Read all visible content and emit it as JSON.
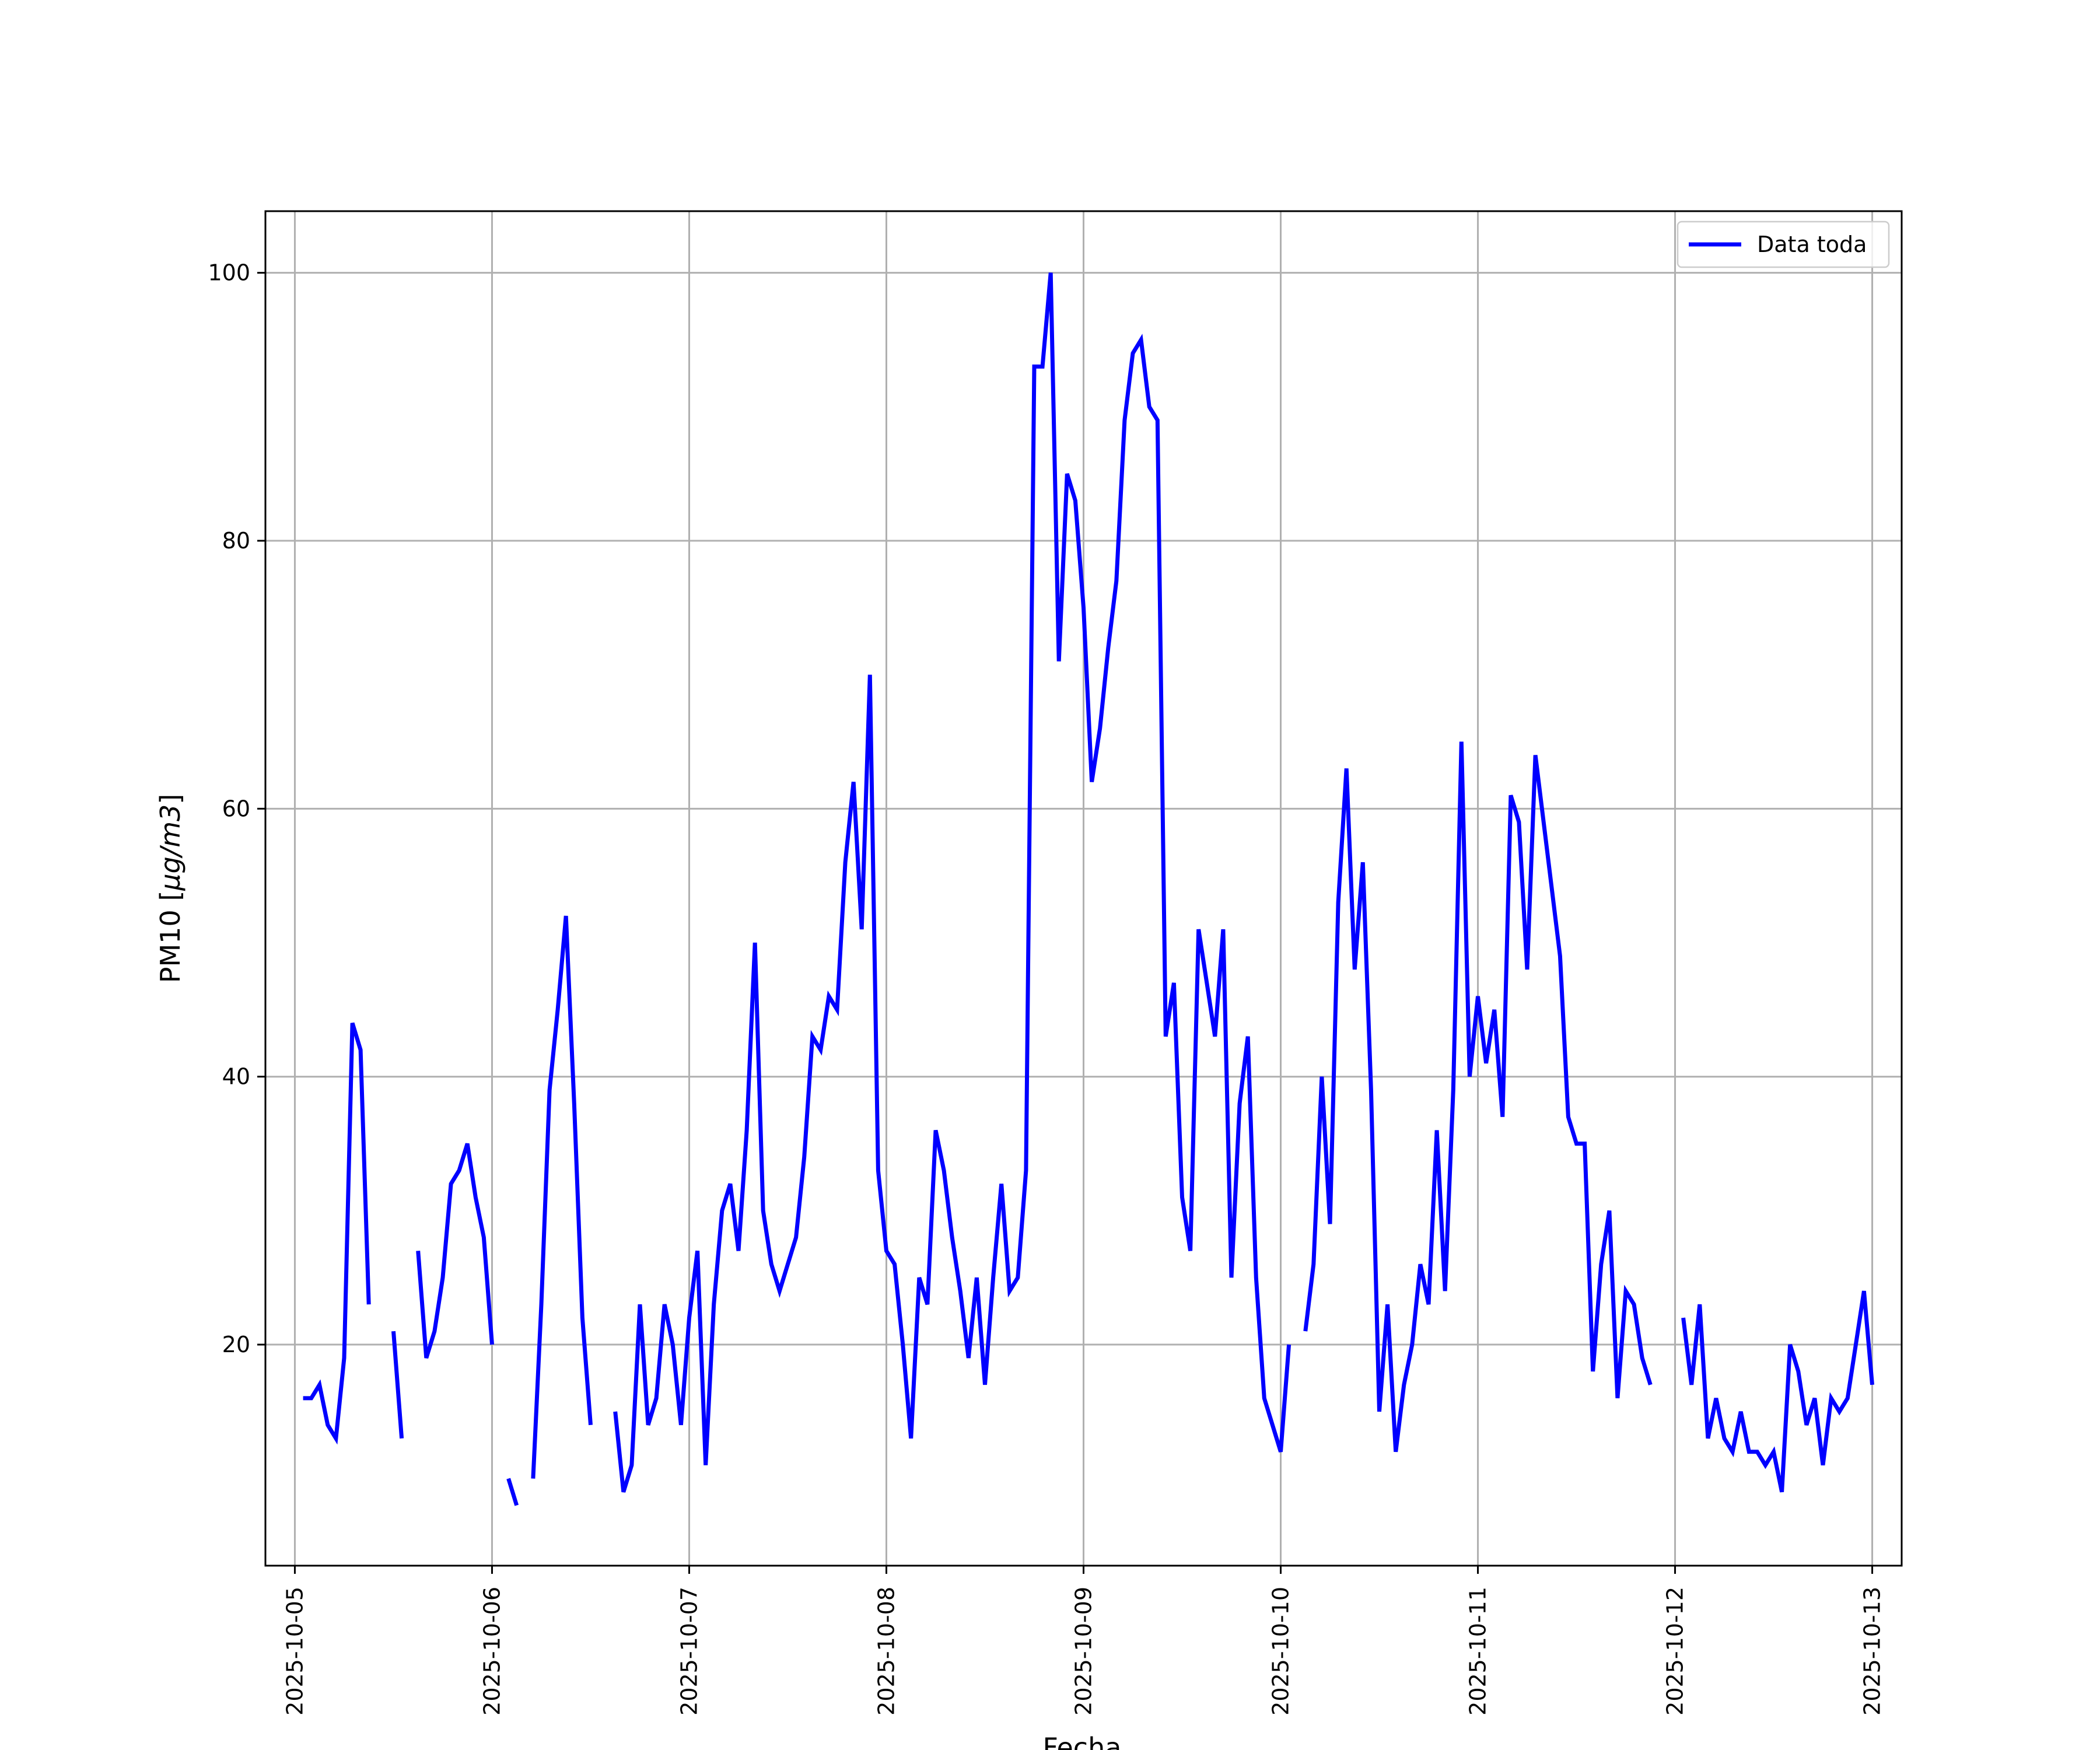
{
  "chart_data": {
    "type": "line",
    "title": "",
    "xlabel": "Fecha",
    "ylabel_prefix": "PM10 [",
    "ylabel_unit": "μg/m3",
    "ylabel_suffix": "]",
    "legend": {
      "label": "Data toda",
      "placement": "top-right"
    },
    "grid": true,
    "xlim": [
      "2025-10-04T20:25",
      "2025-10-13T03:35"
    ],
    "ylim": [
      3.5,
      104.6
    ],
    "x_ticks": [
      "2025-10-05",
      "2025-10-06",
      "2025-10-07",
      "2025-10-08",
      "2025-10-09",
      "2025-10-10",
      "2025-10-11",
      "2025-10-12",
      "2025-10-13"
    ],
    "y_ticks": [
      20,
      40,
      60,
      80,
      100
    ],
    "series": [
      {
        "name": "Data toda",
        "color": "#0000ff",
        "points": [
          [
            "2025-10-05T01:00",
            16
          ],
          [
            "2025-10-05T02:00",
            16
          ],
          [
            "2025-10-05T03:00",
            17
          ],
          [
            "2025-10-05T04:00",
            14
          ],
          [
            "2025-10-05T05:00",
            13
          ],
          [
            "2025-10-05T06:00",
            19
          ],
          [
            "2025-10-05T07:00",
            44
          ],
          [
            "2025-10-05T08:00",
            42
          ],
          [
            "2025-10-05T09:00",
            23
          ],
          [
            "2025-10-05T10:00",
            null
          ],
          [
            "2025-10-05T11:00",
            null
          ],
          [
            "2025-10-05T12:00",
            21
          ],
          [
            "2025-10-05T13:00",
            13
          ],
          [
            "2025-10-05T14:00",
            null
          ],
          [
            "2025-10-05T15:00",
            27
          ],
          [
            "2025-10-05T16:00",
            19
          ],
          [
            "2025-10-05T17:00",
            21
          ],
          [
            "2025-10-05T18:00",
            25
          ],
          [
            "2025-10-05T19:00",
            32
          ],
          [
            "2025-10-05T20:00",
            33
          ],
          [
            "2025-10-05T21:00",
            35
          ],
          [
            "2025-10-05T22:00",
            31
          ],
          [
            "2025-10-05T23:00",
            28
          ],
          [
            "2025-10-06T00:00",
            20
          ],
          [
            "2025-10-06T01:00",
            null
          ],
          [
            "2025-10-06T02:00",
            10
          ],
          [
            "2025-10-06T03:00",
            8
          ],
          [
            "2025-10-06T04:00",
            null
          ],
          [
            "2025-10-06T05:00",
            10
          ],
          [
            "2025-10-06T06:00",
            23
          ],
          [
            "2025-10-06T07:00",
            39
          ],
          [
            "2025-10-06T08:00",
            45
          ],
          [
            "2025-10-06T09:00",
            52
          ],
          [
            "2025-10-06T10:00",
            38
          ],
          [
            "2025-10-06T11:00",
            22
          ],
          [
            "2025-10-06T12:00",
            14
          ],
          [
            "2025-10-06T13:00",
            null
          ],
          [
            "2025-10-06T14:00",
            null
          ],
          [
            "2025-10-06T15:00",
            15
          ],
          [
            "2025-10-06T16:00",
            9
          ],
          [
            "2025-10-06T17:00",
            11
          ],
          [
            "2025-10-06T18:00",
            23
          ],
          [
            "2025-10-06T19:00",
            14
          ],
          [
            "2025-10-06T20:00",
            16
          ],
          [
            "2025-10-06T21:00",
            23
          ],
          [
            "2025-10-06T22:00",
            20
          ],
          [
            "2025-10-06T23:00",
            14
          ],
          [
            "2025-10-07T00:00",
            22
          ],
          [
            "2025-10-07T01:00",
            27
          ],
          [
            "2025-10-07T02:00",
            11
          ],
          [
            "2025-10-07T03:00",
            23
          ],
          [
            "2025-10-07T04:00",
            30
          ],
          [
            "2025-10-07T05:00",
            32
          ],
          [
            "2025-10-07T06:00",
            27
          ],
          [
            "2025-10-07T07:00",
            36
          ],
          [
            "2025-10-07T08:00",
            50
          ],
          [
            "2025-10-07T09:00",
            30
          ],
          [
            "2025-10-07T10:00",
            26
          ],
          [
            "2025-10-07T11:00",
            24
          ],
          [
            "2025-10-07T12:00",
            26
          ],
          [
            "2025-10-07T13:00",
            28
          ],
          [
            "2025-10-07T14:00",
            34
          ],
          [
            "2025-10-07T15:00",
            43
          ],
          [
            "2025-10-07T16:00",
            42
          ],
          [
            "2025-10-07T17:00",
            46
          ],
          [
            "2025-10-07T18:00",
            45
          ],
          [
            "2025-10-07T19:00",
            56
          ],
          [
            "2025-10-07T20:00",
            62
          ],
          [
            "2025-10-07T21:00",
            51
          ],
          [
            "2025-10-07T22:00",
            70
          ],
          [
            "2025-10-07T23:00",
            33
          ],
          [
            "2025-10-08T00:00",
            27
          ],
          [
            "2025-10-08T01:00",
            26
          ],
          [
            "2025-10-08T02:00",
            20
          ],
          [
            "2025-10-08T03:00",
            13
          ],
          [
            "2025-10-08T04:00",
            25
          ],
          [
            "2025-10-08T05:00",
            23
          ],
          [
            "2025-10-08T06:00",
            36
          ],
          [
            "2025-10-08T07:00",
            33
          ],
          [
            "2025-10-08T08:00",
            28
          ],
          [
            "2025-10-08T09:00",
            24
          ],
          [
            "2025-10-08T10:00",
            19
          ],
          [
            "2025-10-08T11:00",
            25
          ],
          [
            "2025-10-08T12:00",
            17
          ],
          [
            "2025-10-08T13:00",
            25
          ],
          [
            "2025-10-08T14:00",
            32
          ],
          [
            "2025-10-08T15:00",
            24
          ],
          [
            "2025-10-08T16:00",
            25
          ],
          [
            "2025-10-08T17:00",
            33
          ],
          [
            "2025-10-08T18:00",
            93
          ],
          [
            "2025-10-08T19:00",
            93
          ],
          [
            "2025-10-08T20:00",
            100
          ],
          [
            "2025-10-08T21:00",
            71
          ],
          [
            "2025-10-08T22:00",
            85
          ],
          [
            "2025-10-08T23:00",
            83
          ],
          [
            "2025-10-09T00:00",
            75
          ],
          [
            "2025-10-09T01:00",
            62
          ],
          [
            "2025-10-09T02:00",
            66
          ],
          [
            "2025-10-09T03:00",
            72
          ],
          [
            "2025-10-09T04:00",
            77
          ],
          [
            "2025-10-09T05:00",
            89
          ],
          [
            "2025-10-09T06:00",
            94
          ],
          [
            "2025-10-09T07:00",
            95
          ],
          [
            "2025-10-09T08:00",
            90
          ],
          [
            "2025-10-09T09:00",
            89
          ],
          [
            "2025-10-09T10:00",
            43
          ],
          [
            "2025-10-09T11:00",
            47
          ],
          [
            "2025-10-09T12:00",
            31
          ],
          [
            "2025-10-09T13:00",
            27
          ],
          [
            "2025-10-09T14:00",
            51
          ],
          [
            "2025-10-09T15:00",
            47
          ],
          [
            "2025-10-09T16:00",
            43
          ],
          [
            "2025-10-09T17:00",
            51
          ],
          [
            "2025-10-09T18:00",
            25
          ],
          [
            "2025-10-09T19:00",
            38
          ],
          [
            "2025-10-09T20:00",
            43
          ],
          [
            "2025-10-09T21:00",
            25
          ],
          [
            "2025-10-09T22:00",
            16
          ],
          [
            "2025-10-09T23:00",
            14
          ],
          [
            "2025-10-10T00:00",
            12
          ],
          [
            "2025-10-10T01:00",
            20
          ],
          [
            "2025-10-10T02:00",
            null
          ],
          [
            "2025-10-10T03:00",
            21
          ],
          [
            "2025-10-10T04:00",
            26
          ],
          [
            "2025-10-10T05:00",
            40
          ],
          [
            "2025-10-10T06:00",
            29
          ],
          [
            "2025-10-10T07:00",
            53
          ],
          [
            "2025-10-10T08:00",
            63
          ],
          [
            "2025-10-10T09:00",
            48
          ],
          [
            "2025-10-10T10:00",
            56
          ],
          [
            "2025-10-10T11:00",
            39
          ],
          [
            "2025-10-10T12:00",
            15
          ],
          [
            "2025-10-10T13:00",
            23
          ],
          [
            "2025-10-10T14:00",
            12
          ],
          [
            "2025-10-10T15:00",
            17
          ],
          [
            "2025-10-10T16:00",
            20
          ],
          [
            "2025-10-10T17:00",
            26
          ],
          [
            "2025-10-10T18:00",
            23
          ],
          [
            "2025-10-10T19:00",
            36
          ],
          [
            "2025-10-10T20:00",
            24
          ],
          [
            "2025-10-10T21:00",
            39
          ],
          [
            "2025-10-10T22:00",
            65
          ],
          [
            "2025-10-10T23:00",
            40
          ],
          [
            "2025-10-11T00:00",
            46
          ],
          [
            "2025-10-11T01:00",
            41
          ],
          [
            "2025-10-11T02:00",
            45
          ],
          [
            "2025-10-11T03:00",
            37
          ],
          [
            "2025-10-11T04:00",
            61
          ],
          [
            "2025-10-11T05:00",
            59
          ],
          [
            "2025-10-11T06:00",
            48
          ],
          [
            "2025-10-11T07:00",
            64
          ],
          [
            "2025-10-11T08:00",
            59
          ],
          [
            "2025-10-11T09:00",
            54
          ],
          [
            "2025-10-11T10:00",
            49
          ],
          [
            "2025-10-11T11:00",
            37
          ],
          [
            "2025-10-11T12:00",
            35
          ],
          [
            "2025-10-11T13:00",
            35
          ],
          [
            "2025-10-11T14:00",
            18
          ],
          [
            "2025-10-11T15:00",
            26
          ],
          [
            "2025-10-11T16:00",
            30
          ],
          [
            "2025-10-11T17:00",
            16
          ],
          [
            "2025-10-11T18:00",
            24
          ],
          [
            "2025-10-11T19:00",
            23
          ],
          [
            "2025-10-11T20:00",
            19
          ],
          [
            "2025-10-11T21:00",
            17
          ],
          [
            "2025-10-11T22:00",
            null
          ],
          [
            "2025-10-12T01:00",
            22
          ],
          [
            "2025-10-12T02:00",
            17
          ],
          [
            "2025-10-12T03:00",
            23
          ],
          [
            "2025-10-12T04:00",
            13
          ],
          [
            "2025-10-12T05:00",
            16
          ],
          [
            "2025-10-12T06:00",
            13
          ],
          [
            "2025-10-12T07:00",
            12
          ],
          [
            "2025-10-12T08:00",
            15
          ],
          [
            "2025-10-12T09:00",
            12
          ],
          [
            "2025-10-12T10:00",
            12
          ],
          [
            "2025-10-12T11:00",
            11
          ],
          [
            "2025-10-12T12:00",
            12
          ],
          [
            "2025-10-12T13:00",
            9
          ],
          [
            "2025-10-12T14:00",
            20
          ],
          [
            "2025-10-12T15:00",
            18
          ],
          [
            "2025-10-12T16:00",
            14
          ],
          [
            "2025-10-12T17:00",
            16
          ],
          [
            "2025-10-12T18:00",
            11
          ],
          [
            "2025-10-12T19:00",
            16
          ],
          [
            "2025-10-12T20:00",
            15
          ],
          [
            "2025-10-12T21:00",
            16
          ],
          [
            "2025-10-12T22:00",
            20
          ],
          [
            "2025-10-12T23:00",
            24
          ],
          [
            "2025-10-13T00:00",
            17
          ]
        ]
      }
    ]
  }
}
